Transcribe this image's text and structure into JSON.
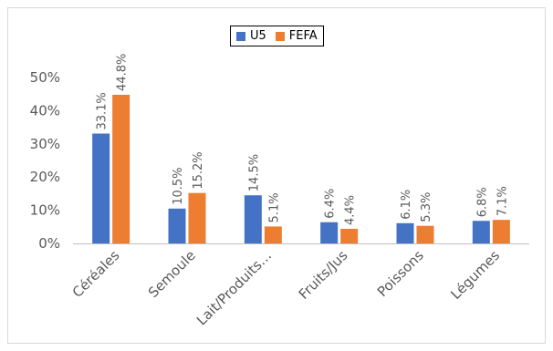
{
  "chart_data": {
    "type": "bar",
    "categories": [
      "Céréales",
      "Semoule",
      "Lait/Produits…",
      "Fruits/Jus",
      "Poissons",
      "Légumes"
    ],
    "series": [
      {
        "name": "U5",
        "color": "#4472C4",
        "values": [
          33.1,
          10.5,
          14.5,
          6.4,
          6.1,
          6.8
        ],
        "labels": [
          "33.1%",
          "10.5%",
          "14.5%",
          "6.4%",
          "6.1%",
          "6.8%"
        ]
      },
      {
        "name": "FEFA",
        "color": "#ED7D31",
        "values": [
          44.8,
          15.2,
          5.1,
          4.4,
          5.3,
          7.1
        ],
        "labels": [
          "44.8%",
          "15.2%",
          "5.1%",
          "4.4%",
          "5.3%",
          "7.1%"
        ]
      }
    ],
    "y_ticks": [
      0,
      10,
      20,
      30,
      40,
      50
    ],
    "y_tick_labels": [
      "0%",
      "10%",
      "20%",
      "30%",
      "40%",
      "50%"
    ],
    "ylim": [
      0,
      50
    ],
    "legend_position": "top-center",
    "grid": false
  }
}
